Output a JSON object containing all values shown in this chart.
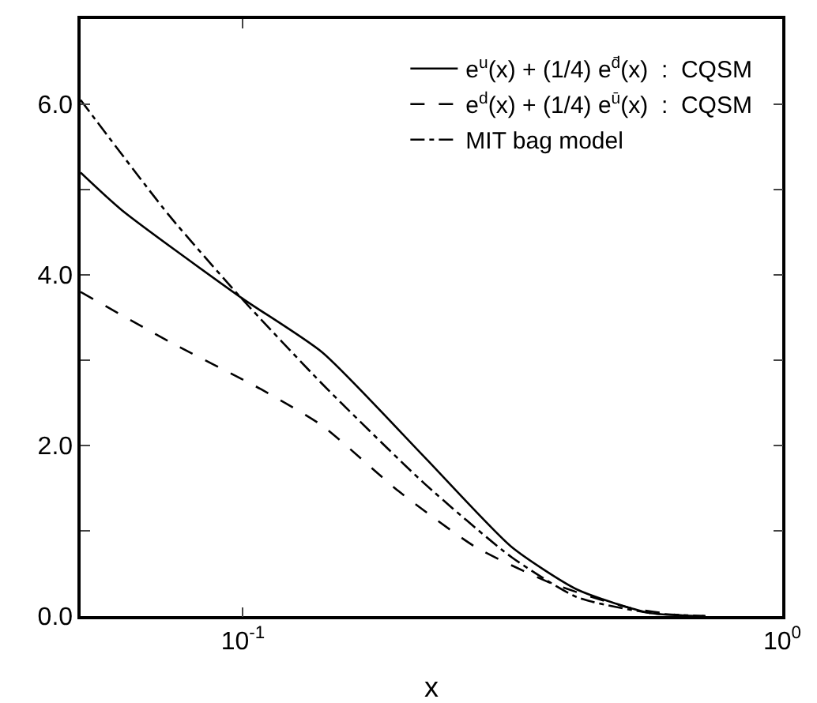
{
  "chart_data": {
    "type": "line",
    "xlabel": "x",
    "log": "x",
    "xlim": [
      0.05,
      1
    ],
    "xticks": [
      {
        "value": 0.1,
        "label": "10$^{-1}$"
      },
      {
        "value": 1,
        "label": "10$^{0}$"
      }
    ],
    "ylim": [
      0,
      7
    ],
    "yticks": [
      {
        "value": 0,
        "label": "0.0"
      },
      {
        "value": 1,
        "label": null
      },
      {
        "value": 2,
        "label": "2.0"
      },
      {
        "value": 3,
        "label": null
      },
      {
        "value": 4,
        "label": "4.0"
      },
      {
        "value": 5,
        "label": null
      },
      {
        "value": 6,
        "label": "6.0"
      }
    ],
    "grid": false,
    "legend": "top right",
    "marker": "none",
    "series": [
      {
        "name": "e$^{u}$(x) + (1/4) e$^{d̄}$(x)  :  CQSM",
        "color": "#000000",
        "line_style": "solid",
        "x": [
          0.05,
          0.0596,
          0.0989,
          0.1404,
          0.2174,
          0.315,
          0.417,
          0.565,
          0.72
        ],
        "values": [
          5.2,
          4.76,
          3.74,
          3.09,
          1.86,
          0.81,
          0.31,
          0.04,
          0
        ]
      },
      {
        "name": "e$^{d}$(x) + (1/4) e$^{ū}$(x)  :  CQSM",
        "color": "#000000",
        "line_style": "dashed",
        "x": [
          0.05,
          0.0729,
          0.108,
          0.1404,
          0.1948,
          0.27,
          0.375,
          0.519,
          0.647,
          0.72
        ],
        "values": [
          3.8,
          3.22,
          2.66,
          2.23,
          1.46,
          0.81,
          0.38,
          0.1,
          0.01,
          0
        ]
      },
      {
        "name": "MIT bag model",
        "color": "#000000",
        "line_style": "dashdot",
        "x": [
          0.05,
          0.0729,
          0.0989,
          0.1404,
          0.2174,
          0.315,
          0.417,
          0.565,
          0.72
        ],
        "values": [
          6.05,
          4.7,
          3.74,
          2.72,
          1.55,
          0.69,
          0.22,
          0.04,
          0
        ]
      }
    ]
  }
}
